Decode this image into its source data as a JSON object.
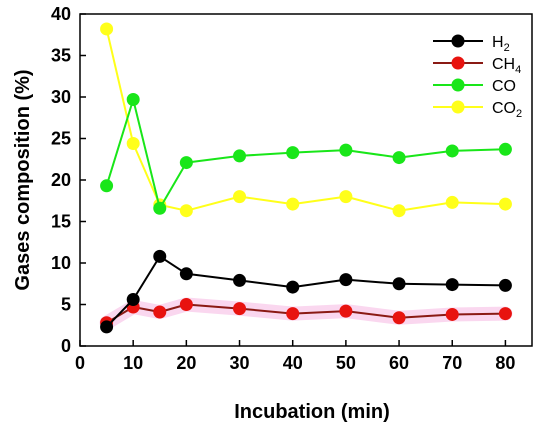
{
  "chart_data": {
    "type": "line",
    "title": "",
    "xlabel": "Incubation (min)",
    "ylabel": "Gases composition (%)",
    "xlim": [
      0,
      85
    ],
    "ylim": [
      0,
      40
    ],
    "xticks": [
      0,
      10,
      20,
      30,
      40,
      50,
      60,
      70,
      80
    ],
    "yticks": [
      0,
      5,
      10,
      15,
      20,
      25,
      30,
      35,
      40
    ],
    "grid": false,
    "legend_position": "top-right",
    "x": [
      5,
      10,
      15,
      20,
      30,
      40,
      50,
      60,
      70,
      80
    ],
    "series": [
      {
        "name": "H2",
        "label_main": "H",
        "label_sub": "2",
        "color": "#000000",
        "line_color": "#000000",
        "marker_color": "#000000",
        "values": [
          2.3,
          5.6,
          10.8,
          8.7,
          7.9,
          7.1,
          8.0,
          7.5,
          7.4,
          7.3
        ]
      },
      {
        "name": "CH4",
        "label_main": "CH",
        "label_sub": "4",
        "color": "#e8130f",
        "line_color": "#8a1a14",
        "marker_color": "#e8130f",
        "halo_color": "#f6b6e2",
        "values": [
          2.8,
          4.7,
          4.1,
          5.0,
          4.5,
          3.9,
          4.2,
          3.4,
          3.8,
          3.9
        ]
      },
      {
        "name": "CO",
        "label_main": "CO",
        "label_sub": "",
        "color": "#19e619",
        "line_color": "#19e619",
        "marker_color": "#19e619",
        "values": [
          19.3,
          29.7,
          16.6,
          22.1,
          22.9,
          23.3,
          23.6,
          22.7,
          23.5,
          23.7
        ]
      },
      {
        "name": "CO2",
        "label_main": "CO",
        "label_sub": "2",
        "color": "#ffff1a",
        "line_color": "#ffff1a",
        "marker_color": "#ffff1a",
        "values": [
          38.2,
          24.4,
          17.0,
          16.3,
          18.0,
          17.1,
          18.0,
          16.3,
          17.3,
          17.1
        ]
      }
    ]
  }
}
